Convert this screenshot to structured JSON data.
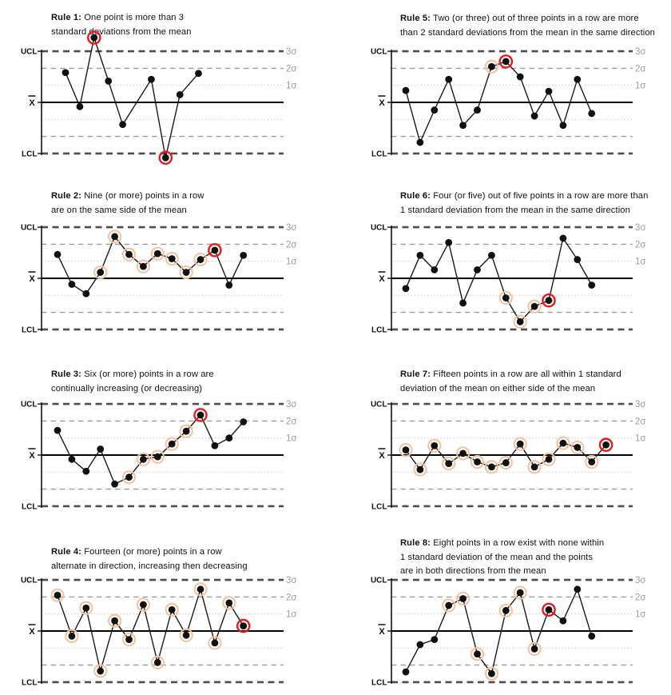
{
  "figure_labels": {
    "ucl": "UCL",
    "lcl": "LCL",
    "mean": "X",
    "sigma_labels": [
      "3σ",
      "2σ",
      "1σ"
    ]
  },
  "colors": {
    "point": "#111111",
    "series_line": "#1a1a1a",
    "mean_line": "#000000",
    "control_limit_dash": "#4d4d4d",
    "two_sigma_dash": "#9b9b9b",
    "one_sigma_dot": "#cccccc",
    "sigma_label_text": "#9c9c9c",
    "orange_ring": "#f8c09c",
    "red_ring": "#e81b1b"
  },
  "chart_data": [
    {
      "id": "rule-1",
      "type": "line",
      "title_bold": "Rule 1:",
      "title_lines": [
        "One point is more than 3",
        "standard deviations from the mean"
      ],
      "ucl_label": "UCL",
      "lcl_label": "LCL",
      "mean_label": "X̄",
      "sigma_labels": [
        "3σ",
        "2σ",
        "1σ"
      ],
      "y_unit": "sigma",
      "ylim": [
        -3.8,
        4.2
      ],
      "grid": "sigma-bands",
      "x_slots": [
        0,
        1,
        2,
        3,
        4,
        6,
        7,
        8,
        9.3
      ],
      "points": [
        {
          "sigma": 1.75
        },
        {
          "sigma": -0.25
        },
        {
          "sigma": 3.8,
          "mark": "red"
        },
        {
          "sigma": 1.25
        },
        {
          "sigma": -1.3
        },
        {
          "sigma": 1.35
        },
        {
          "sigma": -3.25,
          "mark": "red"
        },
        {
          "sigma": 0.45
        },
        {
          "sigma": 1.7
        }
      ]
    },
    {
      "id": "rule-5",
      "type": "line",
      "title_bold": "Rule 5:",
      "title_lines": [
        "Two (or three) out of three points in a row are more",
        "than 2 standard deviations from the mean in the same direction"
      ],
      "ucl_label": "UCL",
      "lcl_label": "LCL",
      "mean_label": "X̄",
      "sigma_labels": [
        "3σ",
        "2σ",
        "1σ"
      ],
      "y_unit": "sigma",
      "ylim": [
        -3,
        3
      ],
      "grid": "sigma-bands",
      "points": [
        {
          "sigma": 0.7
        },
        {
          "sigma": -2.35
        },
        {
          "sigma": -0.45
        },
        {
          "sigma": 1.35
        },
        {
          "sigma": -1.35
        },
        {
          "sigma": -0.45
        },
        {
          "sigma": 2.1,
          "mark": "orange"
        },
        {
          "sigma": 2.4,
          "mark": "red"
        },
        {
          "sigma": 1.5
        },
        {
          "sigma": -0.8
        },
        {
          "sigma": 0.65
        },
        {
          "sigma": -1.35
        },
        {
          "sigma": 1.35
        },
        {
          "sigma": -0.65
        }
      ]
    },
    {
      "id": "rule-2",
      "type": "line",
      "title_bold": "Rule 2:",
      "title_lines": [
        "Nine (or more) points in a row",
        "are on the same side of the mean"
      ],
      "ucl_label": "UCL",
      "lcl_label": "LCL",
      "mean_label": "X̄",
      "sigma_labels": [
        "3σ",
        "2σ",
        "1σ"
      ],
      "y_unit": "sigma",
      "ylim": [
        -3,
        3
      ],
      "grid": "sigma-bands",
      "points": [
        {
          "sigma": 1.4
        },
        {
          "sigma": -0.35
        },
        {
          "sigma": -0.9
        },
        {
          "sigma": 0.35,
          "mark": "orange"
        },
        {
          "sigma": 2.45,
          "mark": "orange"
        },
        {
          "sigma": 1.4,
          "mark": "orange"
        },
        {
          "sigma": 0.7,
          "mark": "orange"
        },
        {
          "sigma": 1.45,
          "mark": "orange"
        },
        {
          "sigma": 1.15,
          "mark": "orange"
        },
        {
          "sigma": 0.35,
          "mark": "orange"
        },
        {
          "sigma": 1.1,
          "mark": "orange"
        },
        {
          "sigma": 1.65,
          "mark": "red"
        },
        {
          "sigma": -0.4
        },
        {
          "sigma": 1.35
        }
      ]
    },
    {
      "id": "rule-6",
      "type": "line",
      "title_bold": "Rule 6:",
      "title_lines": [
        "Four (or five) out of five points in a row are more than",
        "1 standard deviation from the mean in the same direction"
      ],
      "ucl_label": "UCL",
      "lcl_label": "LCL",
      "mean_label": "X̄",
      "sigma_labels": [
        "3σ",
        "2σ",
        "1σ"
      ],
      "y_unit": "sigma",
      "ylim": [
        -3,
        3
      ],
      "grid": "sigma-bands",
      "points": [
        {
          "sigma": -0.6
        },
        {
          "sigma": 1.35
        },
        {
          "sigma": 0.5
        },
        {
          "sigma": 2.1
        },
        {
          "sigma": -1.45
        },
        {
          "sigma": 0.5
        },
        {
          "sigma": 1.35
        },
        {
          "sigma": -1.15,
          "mark": "orange"
        },
        {
          "sigma": -2.55,
          "mark": "orange"
        },
        {
          "sigma": -1.65,
          "mark": "orange"
        },
        {
          "sigma": -1.3,
          "mark": "red"
        },
        {
          "sigma": 2.35
        },
        {
          "sigma": 1.1
        },
        {
          "sigma": -0.4
        }
      ]
    },
    {
      "id": "rule-3",
      "type": "line",
      "title_bold": "Rule 3:",
      "title_lines": [
        "Six (or more) points in a row are",
        "continually increasing (or decreasing)"
      ],
      "ucl_label": "UCL",
      "lcl_label": "LCL",
      "mean_label": "X̄",
      "sigma_labels": [
        "3σ",
        "2σ",
        "1σ"
      ],
      "y_unit": "sigma",
      "ylim": [
        -3,
        3
      ],
      "grid": "sigma-bands",
      "points": [
        {
          "sigma": 1.45
        },
        {
          "sigma": -0.25
        },
        {
          "sigma": -0.95
        },
        {
          "sigma": 0.35
        },
        {
          "sigma": -1.7
        },
        {
          "sigma": -1.3,
          "mark": "orange"
        },
        {
          "sigma": -0.25,
          "mark": "orange"
        },
        {
          "sigma": -0.1,
          "mark": "orange"
        },
        {
          "sigma": 0.65,
          "mark": "orange"
        },
        {
          "sigma": 1.4,
          "mark": "orange"
        },
        {
          "sigma": 2.35,
          "mark": "red"
        },
        {
          "sigma": 0.55
        },
        {
          "sigma": 1.0
        },
        {
          "sigma": 1.95
        }
      ]
    },
    {
      "id": "rule-7",
      "type": "line",
      "title_bold": "Rule 7:",
      "title_lines": [
        "Fifteen points in a row are all within 1 standard",
        "deviation of the mean on either side of the mean"
      ],
      "ucl_label": "UCL",
      "lcl_label": "LCL",
      "mean_label": "X̄",
      "sigma_labels": [
        "3σ",
        "2σ",
        "1σ"
      ],
      "y_unit": "sigma",
      "ylim": [
        -3,
        3
      ],
      "grid": "sigma-bands",
      "points": [
        {
          "sigma": 0.3,
          "mark": "orange"
        },
        {
          "sigma": -0.85,
          "mark": "orange"
        },
        {
          "sigma": 0.55,
          "mark": "orange"
        },
        {
          "sigma": -0.5,
          "mark": "orange"
        },
        {
          "sigma": 0.1,
          "mark": "orange"
        },
        {
          "sigma": -0.4,
          "mark": "orange"
        },
        {
          "sigma": -0.7,
          "mark": "orange"
        },
        {
          "sigma": -0.45,
          "mark": "orange"
        },
        {
          "sigma": 0.65,
          "mark": "orange"
        },
        {
          "sigma": -0.7,
          "mark": "orange"
        },
        {
          "sigma": -0.25,
          "mark": "orange"
        },
        {
          "sigma": 0.7,
          "mark": "orange"
        },
        {
          "sigma": 0.45,
          "mark": "orange"
        },
        {
          "sigma": -0.4,
          "mark": "orange"
        },
        {
          "sigma": 0.6,
          "mark": "red"
        }
      ]
    },
    {
      "id": "rule-4",
      "type": "line",
      "title_bold": "Rule 4:",
      "title_lines": [
        "Fourteen (or more) points in a row",
        "alternate in direction, increasing then decreasing"
      ],
      "ucl_label": "UCL",
      "lcl_label": "LCL",
      "mean_label": "X̄",
      "sigma_labels": [
        "3σ",
        "2σ",
        "1σ"
      ],
      "y_unit": "sigma",
      "ylim": [
        -3,
        3
      ],
      "grid": "sigma-bands",
      "points": [
        {
          "sigma": 2.1,
          "mark": "orange"
        },
        {
          "sigma": -0.3,
          "mark": "orange"
        },
        {
          "sigma": 1.35,
          "mark": "orange"
        },
        {
          "sigma": -2.35,
          "mark": "orange"
        },
        {
          "sigma": 0.6,
          "mark": "orange"
        },
        {
          "sigma": -0.5,
          "mark": "orange"
        },
        {
          "sigma": 1.55,
          "mark": "orange"
        },
        {
          "sigma": -1.85,
          "mark": "orange"
        },
        {
          "sigma": 1.25,
          "mark": "orange"
        },
        {
          "sigma": -0.25,
          "mark": "orange"
        },
        {
          "sigma": 2.45,
          "mark": "orange"
        },
        {
          "sigma": -0.7,
          "mark": "orange"
        },
        {
          "sigma": 1.65,
          "mark": "orange"
        },
        {
          "sigma": 0.3,
          "mark": "red"
        }
      ]
    },
    {
      "id": "rule-8",
      "type": "line",
      "title_bold": "Rule 8:",
      "title_lines": [
        "Eight points in a row exist with none within",
        "1 standard deviation of the mean and the points",
        "are in both directions from the mean"
      ],
      "ucl_label": "UCL",
      "lcl_label": "LCL",
      "mean_label": "X̄",
      "sigma_labels": [
        "3σ",
        "2σ",
        "1σ"
      ],
      "y_unit": "sigma",
      "ylim": [
        -3,
        3
      ],
      "grid": "sigma-bands",
      "points": [
        {
          "sigma": -2.4
        },
        {
          "sigma": -0.8
        },
        {
          "sigma": -0.5
        },
        {
          "sigma": 1.5,
          "mark": "orange"
        },
        {
          "sigma": 1.9,
          "mark": "orange"
        },
        {
          "sigma": -1.35,
          "mark": "orange"
        },
        {
          "sigma": -2.5,
          "mark": "orange"
        },
        {
          "sigma": 1.2,
          "mark": "orange"
        },
        {
          "sigma": 2.25,
          "mark": "orange"
        },
        {
          "sigma": -1.05,
          "mark": "orange"
        },
        {
          "sigma": 1.25,
          "mark": "red"
        },
        {
          "sigma": 0.6
        },
        {
          "sigma": 2.45
        },
        {
          "sigma": -0.3
        }
      ]
    }
  ]
}
